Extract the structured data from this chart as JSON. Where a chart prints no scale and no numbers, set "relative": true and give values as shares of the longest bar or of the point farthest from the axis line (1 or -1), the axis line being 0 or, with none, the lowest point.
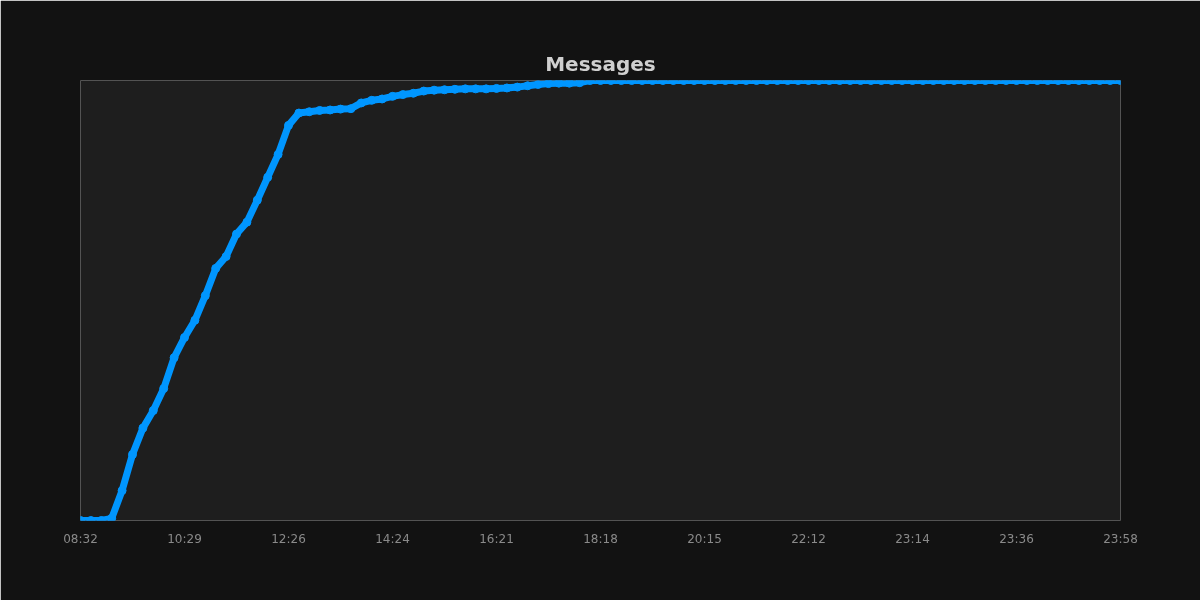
{
  "chart_data": {
    "type": "line",
    "title": "Messages",
    "relative": true,
    "tick_labels": "x",
    "marker": "circle",
    "line_style": "solid",
    "grid": false,
    "categories": [
      "08:32",
      null,
      null,
      null,
      null,
      null,
      null,
      null,
      null,
      null,
      "10:29",
      null,
      null,
      null,
      null,
      null,
      null,
      null,
      null,
      null,
      "12:26",
      null,
      null,
      null,
      null,
      null,
      null,
      null,
      null,
      null,
      "14:24",
      null,
      null,
      null,
      null,
      null,
      null,
      null,
      null,
      null,
      "16:21",
      null,
      null,
      null,
      null,
      null,
      null,
      null,
      null,
      null,
      "18:18",
      null,
      null,
      null,
      null,
      null,
      null,
      null,
      null,
      null,
      "20:15",
      null,
      null,
      null,
      null,
      null,
      null,
      null,
      null,
      null,
      "22:12",
      null,
      null,
      null,
      null,
      null,
      null,
      null,
      null,
      null,
      "23:14",
      null,
      null,
      null,
      null,
      null,
      null,
      null,
      null,
      null,
      "23:36",
      null,
      null,
      null,
      null,
      null,
      null,
      null,
      null,
      null,
      "23:58"
    ],
    "series": [
      {
        "color": "#0096ff",
        "values": [
          0,
          0,
          0,
          0.005,
          0.068,
          0.15,
          0.21,
          0.25,
          0.3,
          0.37,
          0.416,
          0.455,
          0.511,
          0.573,
          0.6,
          0.651,
          0.678,
          0.728,
          0.78,
          0.832,
          0.898,
          0.926,
          0.929,
          0.932,
          0.933,
          0.935,
          0.936,
          0.949,
          0.955,
          0.958,
          0.964,
          0.968,
          0.971,
          0.976,
          0.978,
          0.979,
          0.98,
          0.981,
          0.981,
          0.981,
          0.982,
          0.983,
          0.985,
          0.988,
          0.991,
          0.993,
          0.994,
          0.994,
          0.995,
          1,
          1,
          1,
          1,
          1,
          1,
          1,
          1,
          1,
          1,
          1,
          1,
          1,
          1,
          1,
          1,
          1,
          1,
          1,
          1,
          1,
          1,
          1,
          1,
          1,
          1,
          1,
          1,
          1,
          1,
          1,
          1,
          1,
          1,
          1,
          1,
          1,
          1,
          1,
          1,
          1,
          1,
          1,
          1,
          1,
          1,
          1,
          1,
          1,
          1,
          1,
          1
        ]
      }
    ]
  }
}
